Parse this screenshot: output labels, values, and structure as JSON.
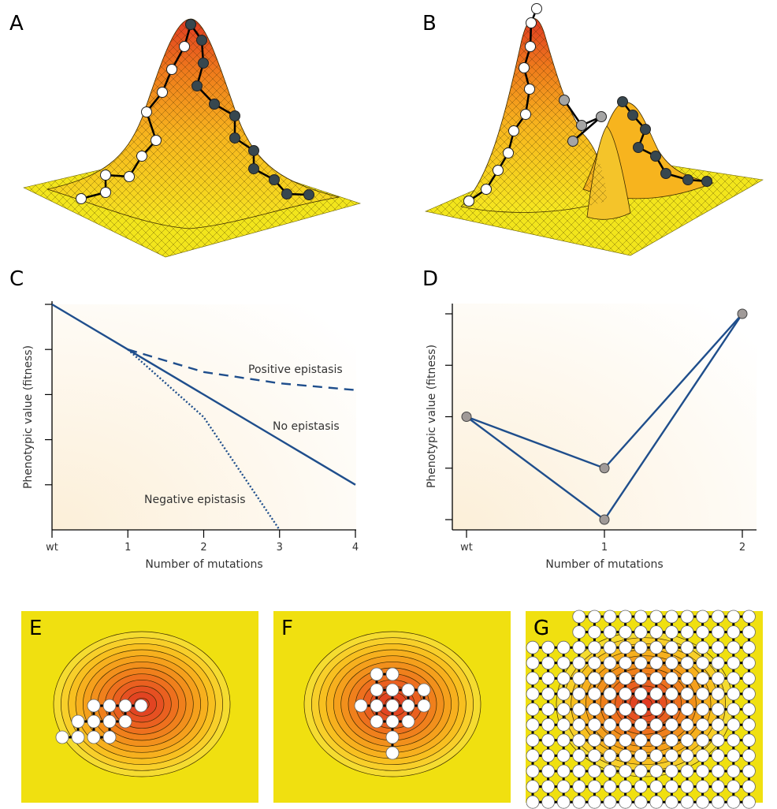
{
  "panels": {
    "A": {
      "label": "A",
      "type": "3d-surface",
      "description": "single-peak fitness landscape",
      "paths": [
        {
          "name": "white path",
          "color": "#ffffff",
          "steps": 10
        },
        {
          "name": "dark path",
          "color": "#37474f",
          "steps": 10
        }
      ]
    },
    "B": {
      "label": "B",
      "type": "3d-surface",
      "description": "rugged multi-peak fitness landscape",
      "paths": [
        {
          "name": "white path",
          "color": "#ffffff",
          "steps": 12
        },
        {
          "name": "grey path",
          "color": "#a5a5a5",
          "steps": 5
        },
        {
          "name": "dark path",
          "color": "#37474f",
          "steps": 8
        }
      ]
    },
    "E": {
      "label": "E",
      "type": "contour",
      "explored_nodes": 14
    },
    "F": {
      "label": "F",
      "type": "contour",
      "explored_nodes": 17
    },
    "G": {
      "label": "G",
      "type": "contour",
      "explored_nodes": "full lattice"
    }
  },
  "colors": {
    "line": "#1f4e8c",
    "marker": "#a09a98",
    "marker_stroke": "#444444",
    "landscape_low": "#f0e010",
    "landscape_high": "#e03a22",
    "bg_yellow": "#f0e010"
  },
  "chart_data": [
    {
      "panel": "C",
      "type": "line",
      "title": "",
      "xlabel": "Number of mutations",
      "ylabel": "Phenotypic value (fitness)",
      "categories": [
        "wt",
        "1",
        "2",
        "3",
        "4"
      ],
      "x": [
        0,
        1,
        2,
        3,
        4
      ],
      "ylim": [
        0,
        5
      ],
      "y_ticks": [
        1,
        2,
        3,
        4,
        5
      ],
      "grid": false,
      "series": [
        {
          "name": "No epistasis",
          "style": "solid",
          "x": [
            0,
            1,
            2,
            3,
            4
          ],
          "values": [
            5,
            4,
            3,
            2,
            1
          ]
        },
        {
          "name": "Positive epistasis",
          "style": "dashed",
          "x": [
            1,
            2,
            3,
            4
          ],
          "values": [
            4,
            3.5,
            3.25,
            3.1
          ]
        },
        {
          "name": "Negative epistasis",
          "style": "dotted",
          "x": [
            1,
            2,
            3
          ],
          "values": [
            4,
            2.5,
            0
          ]
        }
      ],
      "annotations": [
        "Positive epistasis",
        "No epistasis",
        "Negative epistasis"
      ]
    },
    {
      "panel": "D",
      "type": "line",
      "title": "",
      "xlabel": "Number of mutations",
      "ylabel": "Phenotypic value (fitness)",
      "categories": [
        "wt",
        "1",
        "2"
      ],
      "x": [
        0,
        1,
        2
      ],
      "ylim": [
        0,
        5
      ],
      "y_ticks": [
        1,
        2,
        3,
        4,
        5
      ],
      "grid": false,
      "series": [
        {
          "name": "path via upper single mutant",
          "style": "solid",
          "x": [
            0,
            1,
            2
          ],
          "values": [
            3,
            2,
            5
          ]
        },
        {
          "name": "path via lower single mutant",
          "style": "solid",
          "x": [
            0,
            1,
            2
          ],
          "values": [
            3,
            1,
            5
          ]
        }
      ],
      "annotations": []
    }
  ]
}
